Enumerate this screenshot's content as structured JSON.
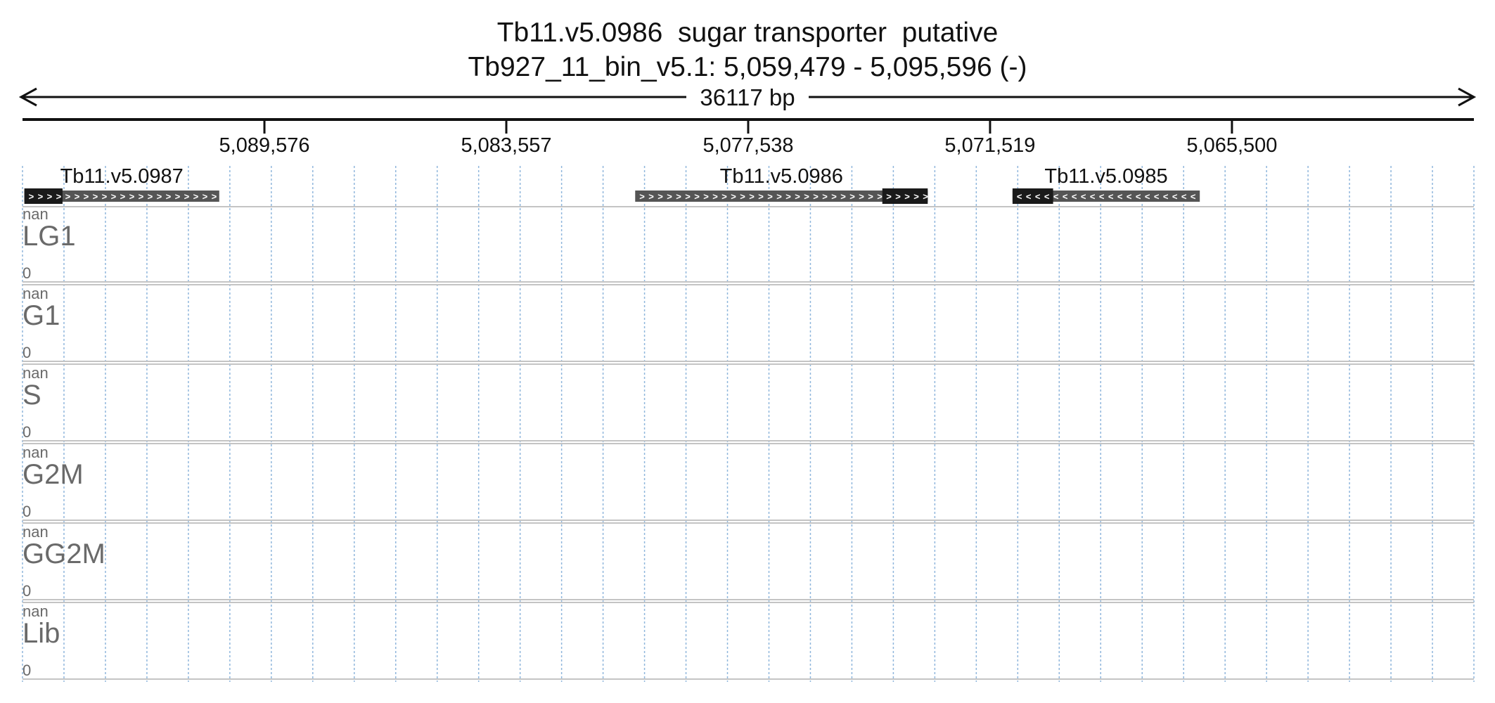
{
  "header": {
    "title": "Tb11.v5.0986  sugar transporter  putative",
    "location": "Tb927_11_bin_v5.1: 5,059,479 - 5,095,596 (-)",
    "span_label": "36117 bp"
  },
  "region": {
    "start": 5059479,
    "end": 5095596,
    "strand": "-"
  },
  "ticks": [
    {
      "value": 5089576,
      "label": "5,089,576"
    },
    {
      "value": 5083557,
      "label": "5,083,557"
    },
    {
      "value": 5077538,
      "label": "5,077,538"
    },
    {
      "value": 5071519,
      "label": "5,071,519"
    },
    {
      "value": 5065500,
      "label": "5,065,500"
    }
  ],
  "genes": [
    {
      "name": "Tb11.v5.0987",
      "start": 5090700,
      "end": 5095550,
      "dark_start": 5094600,
      "dark_end": 5095550,
      "chevron": ">"
    },
    {
      "name": "Tb11.v5.0986",
      "start": 5073070,
      "end": 5080350,
      "dark_start": 5073070,
      "dark_end": 5074200,
      "chevron": ">"
    },
    {
      "name": "Tb11.v5.0985",
      "start": 5066300,
      "end": 5070960,
      "dark_start": 5069950,
      "dark_end": 5070960,
      "chevron": "<"
    }
  ],
  "tracks": [
    {
      "name": "LG1",
      "max": "nan",
      "min": "0"
    },
    {
      "name": "G1",
      "max": "nan",
      "min": "0"
    },
    {
      "name": "S",
      "max": "nan",
      "min": "0"
    },
    {
      "name": "G2M",
      "max": "nan",
      "min": "0"
    },
    {
      "name": "GG2M",
      "max": "nan",
      "min": "0"
    },
    {
      "name": "Lib",
      "max": "nan",
      "min": "0"
    }
  ],
  "colors": {
    "axis": "#111111",
    "gene_dark": "#1a1a1a",
    "gene_light": "#555555",
    "grid": "#8fb6dc",
    "separator": "#c4c4c4",
    "track_text": "#6a6a6a"
  }
}
